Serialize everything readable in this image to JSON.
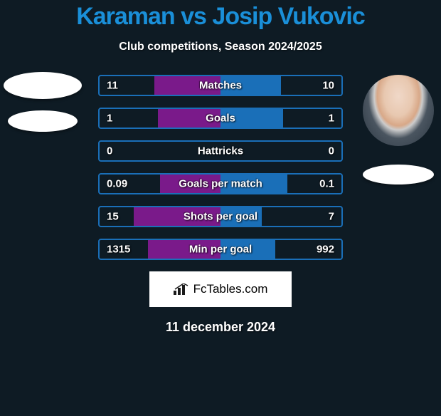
{
  "title": "Karaman vs Josip Vukovic",
  "title_color": "#1a8fd8",
  "title_fontsize": 34,
  "subtitle": "Club competitions, Season 2024/2025",
  "subtitle_fontsize": 16,
  "date": "11 december 2024",
  "date_fontsize": 18,
  "badge_text": "FcTables.com",
  "badge_fontsize": 17,
  "colors": {
    "background": "#0e1b24",
    "bar_border": "#1a6fb8",
    "left_fill": "#7a1a8a",
    "right_fill": "#1a6fb8",
    "text": "#ffffff"
  },
  "label_fontsize": 15,
  "value_fontsize": 15,
  "rows": [
    {
      "label": "Matches",
      "left_val": "11",
      "right_val": "10",
      "left_pct": 55,
      "right_pct": 50
    },
    {
      "label": "Goals",
      "left_val": "1",
      "right_val": "1",
      "left_pct": 52,
      "right_pct": 52
    },
    {
      "label": "Hattricks",
      "left_val": "0",
      "right_val": "0",
      "left_pct": 0,
      "right_pct": 0
    },
    {
      "label": "Goals per match",
      "left_val": "0.09",
      "right_val": "0.1",
      "left_pct": 50,
      "right_pct": 55
    },
    {
      "label": "Shots per goal",
      "left_val": "15",
      "right_val": "7",
      "left_pct": 72,
      "right_pct": 34
    },
    {
      "label": "Min per goal",
      "left_val": "1315",
      "right_val": "992",
      "left_pct": 60,
      "right_pct": 45
    }
  ],
  "avatars": {
    "left": {
      "circle_bg": "#ffffff",
      "flag_bg": "#ffffff"
    },
    "right": {
      "circle_bg": "#e8d5c8",
      "flag_bg": "#ffffff"
    }
  }
}
